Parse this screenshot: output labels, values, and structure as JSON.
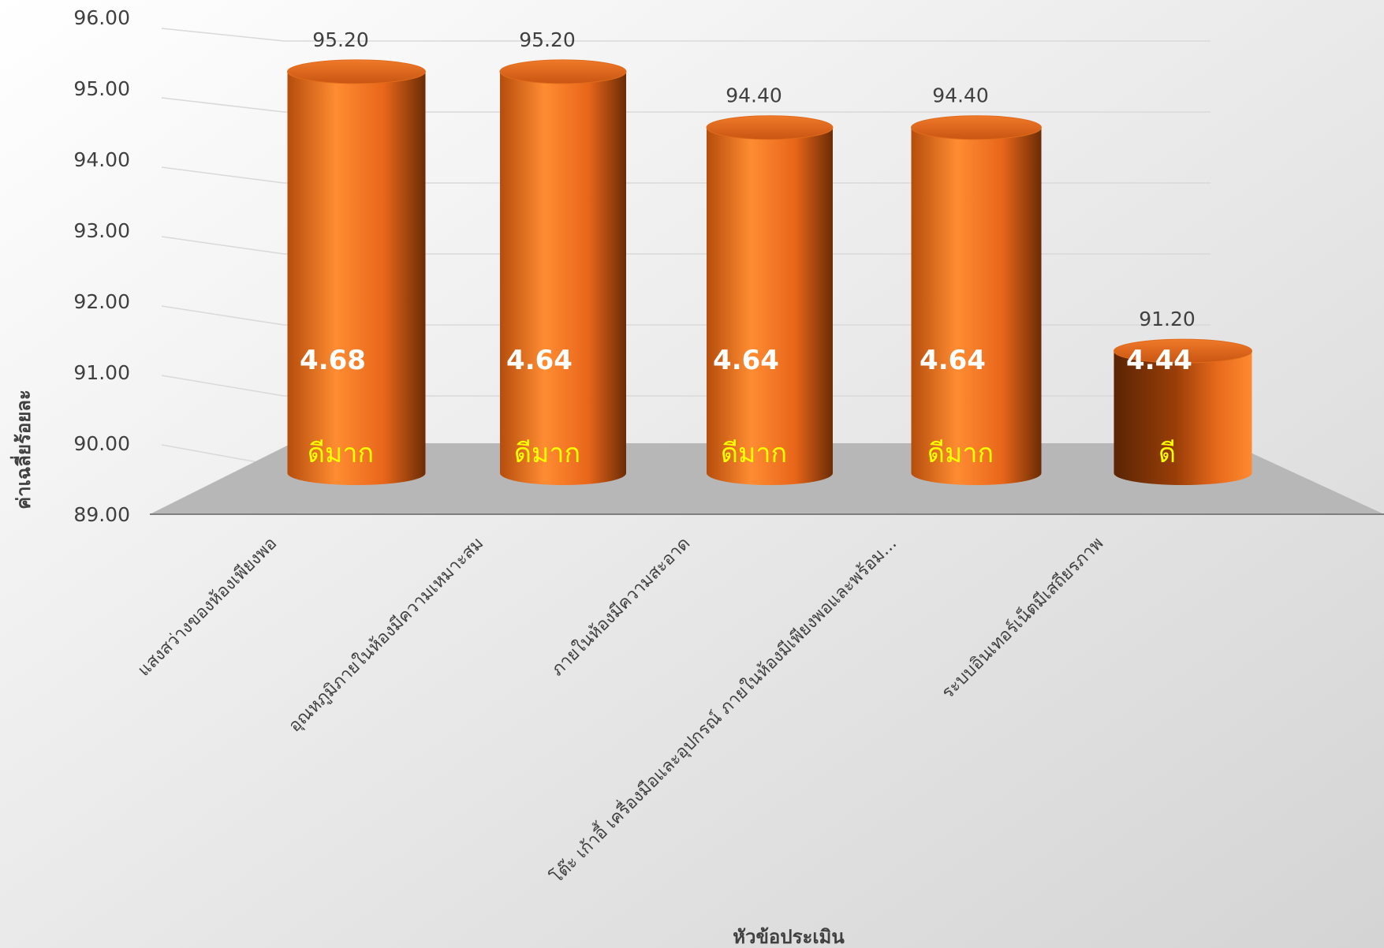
{
  "chart_data": {
    "type": "bar",
    "title": "",
    "xlabel": "หัวข้อประเมิน",
    "ylabel": "ค่าเฉลี่ยร้อยละ",
    "ylim": [
      89,
      96
    ],
    "yticks": [
      "96.00",
      "95.00",
      "94.00",
      "93.00",
      "92.00",
      "91.00",
      "90.00",
      "89.00"
    ],
    "grid": true,
    "legend": "none",
    "categories": [
      "แสงสว่างของห้องเพียงพอ",
      "อุณหภูมิภายในห้องมีความเหมาะสม",
      "ภายในห้องมีความสะอาด",
      "โต๊ะ เก้าอี้ เครื่องมือและอุปกรณ์ ภายในห้องมีเพียงพอและพร้อม...",
      "ระบบอินเทอร์เน็ตมีเสถียรภาพ"
    ],
    "values": [
      95.2,
      95.2,
      94.4,
      94.4,
      91.2
    ],
    "value_labels": [
      "95.20",
      "95.20",
      "94.40",
      "94.40",
      "91.20"
    ],
    "mean_scores": [
      "4.68",
      "4.64",
      "4.64",
      "4.64",
      "4.44"
    ],
    "levels": [
      "ดีมาก",
      "ดีมาก",
      "ดีมาก",
      "ดีมาก",
      "ดี"
    ],
    "colors": {
      "bar_light": "#ff8c32",
      "bar_mid": "#e8661a",
      "bar_dark": "#6b2c05",
      "floor": "#b7b7b7",
      "score_text": "#ffffff",
      "level_text": "#ffff00",
      "text": "#404040"
    }
  }
}
